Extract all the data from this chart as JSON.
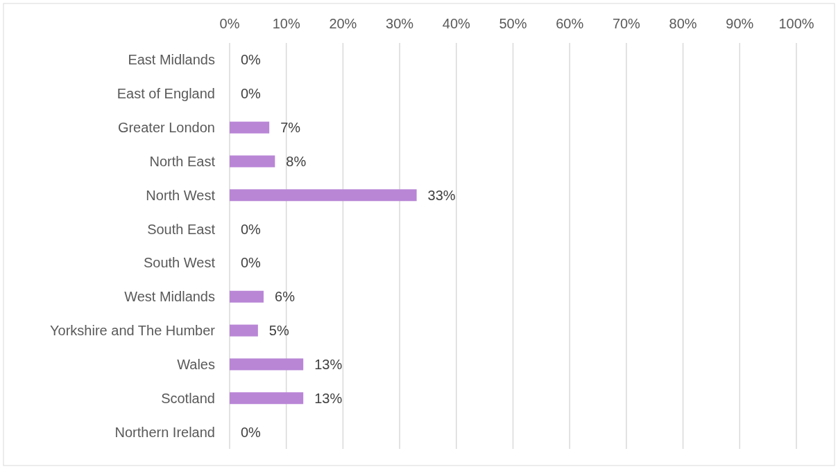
{
  "chart_data": {
    "type": "bar",
    "orientation": "horizontal",
    "categories": [
      "East Midlands",
      "East of England",
      "Greater London",
      "North East",
      "North West",
      "South East",
      "South West",
      "West Midlands",
      "Yorkshire and The Humber",
      "Wales",
      "Scotland",
      "Northern Ireland"
    ],
    "values": [
      0,
      0,
      7,
      8,
      33,
      0,
      0,
      6,
      5,
      13,
      13,
      0
    ],
    "value_labels": [
      "0%",
      "0%",
      "7%",
      "8%",
      "33%",
      "0%",
      "0%",
      "6%",
      "5%",
      "13%",
      "13%",
      "0%"
    ],
    "color": "#b986d6",
    "xlim": [
      0,
      100
    ],
    "xticks": [
      {
        "value": 0,
        "label": "0%"
      },
      {
        "value": 10,
        "label": "10%"
      },
      {
        "value": 20,
        "label": "20%"
      },
      {
        "value": 30,
        "label": "30%"
      },
      {
        "value": 40,
        "label": "40%"
      },
      {
        "value": 50,
        "label": "50%"
      },
      {
        "value": 60,
        "label": "60%"
      },
      {
        "value": 70,
        "label": "70%"
      },
      {
        "value": 80,
        "label": "80%"
      },
      {
        "value": 90,
        "label": "90%"
      },
      {
        "value": 100,
        "label": "100%"
      }
    ],
    "grid": "x"
  }
}
